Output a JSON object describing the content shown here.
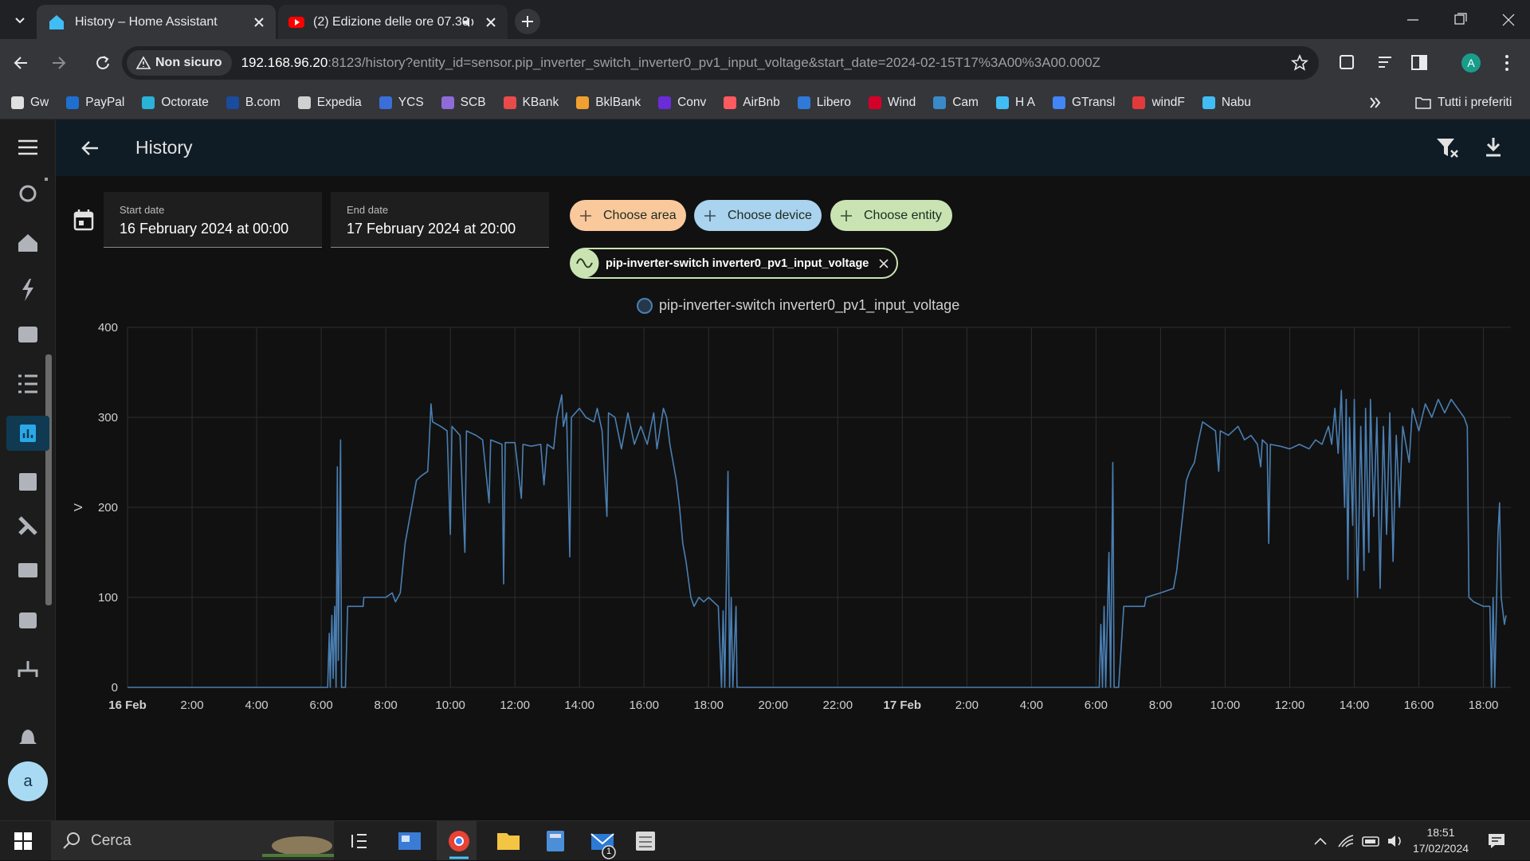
{
  "browser": {
    "tabs": [
      {
        "title": "History – Home Assistant"
      },
      {
        "title": "(2) Edizione delle ore 07.30"
      }
    ],
    "security": "Non sicuro",
    "url_host": "192.168.96.20",
    "url_rest": ":8123/history?entity_id=sensor.pip_inverter_switch_inverter0_pv1_input_voltage&start_date=2024-02-15T17%3A00%3A00.000Z",
    "bookmarks": [
      "Gw",
      "PayPal",
      "Octorate",
      "B.com",
      "Expedia",
      "YCS",
      "SCB",
      "KBank",
      "BklBank",
      "Conv",
      "AirBnb",
      "Libero",
      "Wind",
      "Cam",
      "H A",
      "GTransl",
      "windF",
      "Nabu"
    ],
    "all_bookmarks": "Tutti i preferiti",
    "profile_initial": "A"
  },
  "app": {
    "title": "History",
    "start_label": "Start date",
    "start_value": "16 February 2024 at 00:00",
    "end_label": "End date",
    "end_value": "17 February 2024 at 20:00",
    "chips": [
      "Choose area",
      "Choose device",
      "Choose entity"
    ],
    "selected_entity": "pip-inverter-switch inverter0_pv1_input_voltage",
    "user_initial": "a"
  },
  "chart_data": {
    "type": "line",
    "y_label": "V",
    "x": [
      0,
      6.2,
      6.25,
      6.28,
      6.33,
      6.37,
      6.42,
      6.46,
      6.5,
      6.53,
      6.6,
      6.63,
      6.75,
      6.82,
      7.3,
      7.32,
      8.0,
      8.2,
      8.3,
      8.45,
      8.6,
      8.8,
      8.95,
      9.1,
      9.3,
      9.35,
      9.4,
      9.45,
      9.7,
      9.9,
      10.0,
      10.05,
      10.3,
      10.45,
      10.5,
      10.8,
      11.0,
      11.2,
      11.25,
      11.6,
      11.65,
      11.7,
      12.0,
      12.2,
      12.25,
      12.5,
      12.8,
      12.9,
      13.0,
      13.2,
      13.3,
      13.45,
      13.5,
      13.6,
      13.7,
      13.75,
      14.0,
      14.2,
      14.45,
      14.55,
      14.7,
      14.85,
      14.9,
      15.1,
      15.3,
      15.5,
      15.7,
      15.9,
      16.1,
      16.3,
      16.4,
      16.6,
      16.7,
      16.8,
      16.9,
      17.0,
      17.1,
      17.2,
      17.3,
      17.45,
      17.55,
      17.7,
      17.85,
      18.0,
      18.3,
      18.4,
      18.45,
      18.5,
      18.6,
      18.65,
      18.7,
      18.75,
      18.85,
      18.88,
      30.1,
      30.15,
      30.2,
      30.25,
      30.3,
      30.4,
      30.45,
      30.52,
      30.56,
      30.7,
      30.86,
      31.5,
      31.55,
      32.0,
      32.4,
      32.5,
      32.65,
      32.8,
      32.9,
      33.05,
      33.15,
      33.3,
      33.5,
      33.7,
      33.8,
      33.85,
      34.1,
      34.4,
      34.6,
      34.8,
      35.0,
      35.1,
      35.15,
      35.3,
      35.35,
      35.4,
      35.7,
      36.0,
      36.3,
      36.6,
      36.8,
      37.0,
      37.2,
      37.3,
      37.4,
      37.5,
      37.6,
      37.7,
      37.75,
      37.8,
      37.85,
      37.95,
      38.0,
      38.1,
      38.2,
      38.3,
      38.35,
      38.45,
      38.5,
      38.6,
      38.7,
      38.8,
      38.9,
      39.0,
      39.1,
      39.2,
      39.3,
      39.4,
      39.5,
      39.7,
      39.8,
      40.0,
      40.2,
      40.4,
      40.6,
      40.8,
      41.0,
      41.2,
      41.4,
      41.5,
      41.55,
      41.7,
      42.0,
      42.2,
      42.25,
      42.3,
      42.35,
      42.45,
      42.5,
      42.55,
      42.65,
      42.7
    ],
    "series": [
      {
        "name": "pip-inverter-switch inverter0_pv1_input_voltage",
        "color": "#4a7fb3",
        "values": [
          0,
          0,
          60,
          0,
          80,
          10,
          90,
          0,
          245,
          30,
          275,
          0,
          0,
          90,
          90,
          100,
          100,
          105,
          95,
          105,
          160,
          200,
          230,
          235,
          240,
          275,
          315,
          295,
          290,
          285,
          170,
          290,
          280,
          150,
          285,
          280,
          275,
          205,
          275,
          270,
          115,
          272,
          272,
          210,
          270,
          268,
          270,
          225,
          270,
          265,
          300,
          325,
          290,
          305,
          145,
          300,
          310,
          300,
          295,
          310,
          285,
          190,
          305,
          300,
          265,
          305,
          270,
          290,
          270,
          305,
          265,
          310,
          300,
          270,
          250,
          230,
          200,
          160,
          140,
          100,
          90,
          100,
          95,
          100,
          90,
          0,
          85,
          0,
          240,
          0,
          100,
          0,
          90,
          0,
          0,
          70,
          0,
          90,
          0,
          150,
          0,
          250,
          0,
          0,
          90,
          90,
          100,
          105,
          110,
          130,
          180,
          230,
          240,
          250,
          270,
          295,
          290,
          285,
          240,
          285,
          280,
          290,
          275,
          280,
          270,
          245,
          275,
          270,
          160,
          270,
          268,
          265,
          270,
          265,
          275,
          270,
          290,
          270,
          310,
          260,
          330,
          200,
          320,
          120,
          300,
          180,
          320,
          100,
          290,
          130,
          310,
          150,
          320,
          190,
          300,
          110,
          290,
          170,
          305,
          140,
          280,
          200,
          290,
          250,
          310,
          285,
          315,
          300,
          320,
          305,
          320,
          310,
          300,
          290,
          100,
          95,
          90,
          90,
          0,
          100,
          0,
          170,
          205,
          100,
          70,
          80
        ]
      }
    ],
    "xlim": [
      0,
      42.85
    ],
    "xticks": [
      {
        "value": 0,
        "label": "16 Feb"
      },
      {
        "value": 2,
        "label": "2:00"
      },
      {
        "value": 4,
        "label": "4:00"
      },
      {
        "value": 6,
        "label": "6:00"
      },
      {
        "value": 8,
        "label": "8:00"
      },
      {
        "value": 10,
        "label": "10:00"
      },
      {
        "value": 12,
        "label": "12:00"
      },
      {
        "value": 14,
        "label": "14:00"
      },
      {
        "value": 16,
        "label": "16:00"
      },
      {
        "value": 18,
        "label": "18:00"
      },
      {
        "value": 20,
        "label": "20:00"
      },
      {
        "value": 22,
        "label": "22:00"
      },
      {
        "value": 24,
        "label": "17 Feb"
      },
      {
        "value": 26,
        "label": "2:00"
      },
      {
        "value": 28,
        "label": "4:00"
      },
      {
        "value": 30,
        "label": "6:00"
      },
      {
        "value": 32,
        "label": "8:00"
      },
      {
        "value": 34,
        "label": "10:00"
      },
      {
        "value": 36,
        "label": "12:00"
      },
      {
        "value": 38,
        "label": "14:00"
      },
      {
        "value": 40,
        "label": "16:00"
      },
      {
        "value": 42,
        "label": "18:00"
      }
    ],
    "ylim": [
      0,
      400
    ],
    "yticks": [
      0,
      100,
      200,
      300,
      400
    ],
    "grid": true
  },
  "taskbar": {
    "search": "Cerca",
    "time": "18:51",
    "date": "17/02/2024",
    "mail_badge": 1
  }
}
